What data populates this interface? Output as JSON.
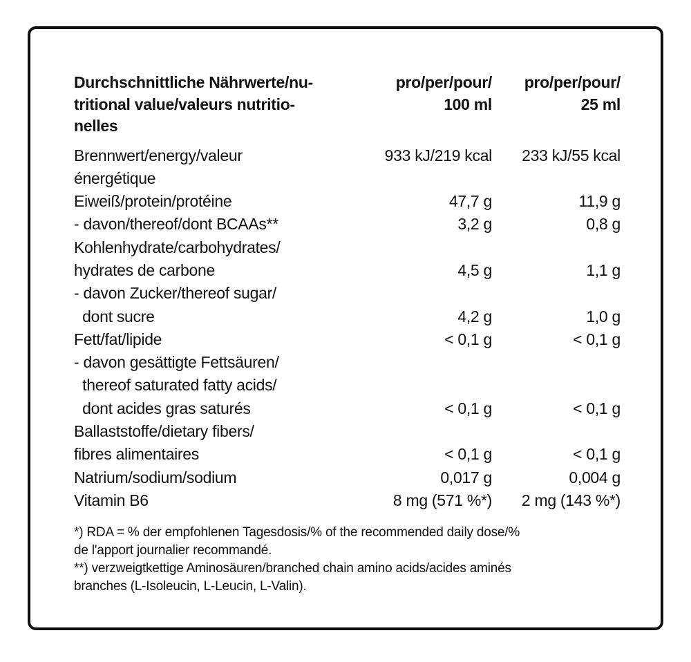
{
  "header": {
    "label_lines": [
      "Durchschnittliche Nährwerte/nu-",
      "tritional value/valeurs nutritio-",
      "nelles"
    ],
    "col1_lines": [
      "pro/per/pour/",
      "100 ml"
    ],
    "col2_lines": [
      "pro/per/pour/",
      "25 ml"
    ]
  },
  "rows": [
    {
      "label_lines": [
        "Brennwert/energy/valeur",
        "énergétique"
      ],
      "per_100ml": "933 kJ/219 kcal",
      "per_25ml": "233 kJ/55 kcal"
    },
    {
      "label_lines": [
        "Eiweiß/protein/protéine"
      ],
      "per_100ml": "47,7 g",
      "per_25ml": "11,9 g"
    },
    {
      "label_lines": [
        "- davon/thereof/dont BCAAs**"
      ],
      "per_100ml": "3,2 g",
      "per_25ml": "0,8 g"
    },
    {
      "label_lines": [
        "Kohlenhydrate/carbohydrates/",
        "hydrates de carbone"
      ],
      "per_100ml": "4,5 g",
      "per_25ml": "1,1 g"
    },
    {
      "label_lines": [
        "- davon Zucker/thereof sugar/",
        "  dont sucre"
      ],
      "per_100ml": "4,2 g",
      "per_25ml": "1,0 g"
    },
    {
      "label_lines": [
        "Fett/fat/lipide"
      ],
      "per_100ml": "< 0,1 g",
      "per_25ml": "< 0,1 g"
    },
    {
      "label_lines": [
        "- davon gesättigte Fettsäuren/",
        "  thereof saturated fatty acids/",
        "  dont acides gras saturés"
      ],
      "per_100ml": "< 0,1 g",
      "per_25ml": "< 0,1 g"
    },
    {
      "label_lines": [
        "Ballaststoffe/dietary fibers/",
        "fibres alimentaires"
      ],
      "per_100ml": "< 0,1 g",
      "per_25ml": "< 0,1 g"
    },
    {
      "label_lines": [
        "Natrium/sodium/sodium"
      ],
      "per_100ml": "0,017 g",
      "per_25ml": "0,004 g"
    },
    {
      "label_lines": [
        "Vitamin B6"
      ],
      "per_100ml": "8 mg (571 %*)",
      "per_25ml": "2 mg (143 %*)"
    }
  ],
  "footnotes": [
    "*) RDA = % der empfohlenen Tagesdosis/% of the recommended daily dose/%",
    "de l'apport journalier recommandé.",
    "**) verzweigtkettige Aminosäuren/branched chain amino acids/acides aminés",
    "branches (L-Isoleucin, L-Leucin, L-Valin)."
  ]
}
